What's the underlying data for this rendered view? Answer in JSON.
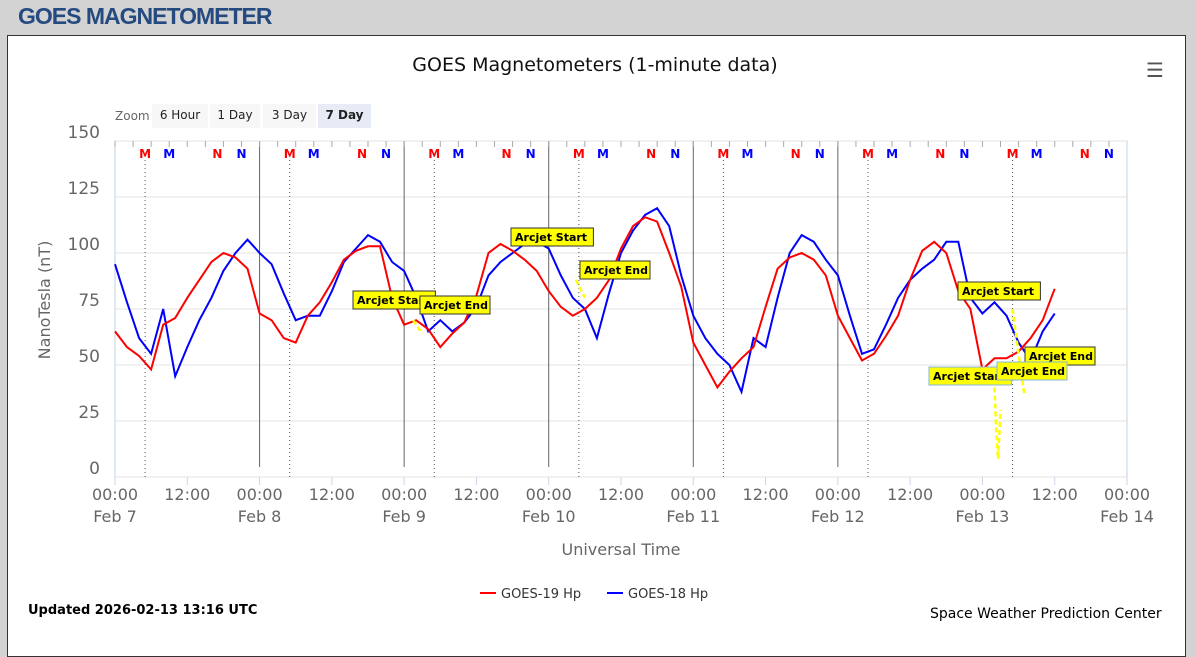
{
  "page_title": "GOES MAGNETOMETER",
  "updated": "Updated 2026-02-13 13:16 UTC",
  "credit": "Space Weather Prediction Center",
  "zoom": {
    "label": "Zoom",
    "buttons": [
      "6 Hour",
      "1 Day",
      "3 Day",
      "7 Day"
    ],
    "selected": "7 Day"
  },
  "chart_data": {
    "type": "line",
    "title": "GOES Magnetometers (1-minute data)",
    "xlabel": "Universal Time",
    "ylabel": "NanoTesla (nT)",
    "ylim": [
      0,
      150
    ],
    "yticks": [
      "0",
      "25",
      "50",
      "75",
      "100",
      "125",
      "150"
    ],
    "xlim_hours": [
      0,
      168
    ],
    "xticks": [
      {
        "t": "00:00",
        "d": "Feb 7"
      },
      {
        "t": "12:00",
        "d": ""
      },
      {
        "t": "00:00",
        "d": "Feb 8"
      },
      {
        "t": "12:00",
        "d": ""
      },
      {
        "t": "00:00",
        "d": "Feb 9"
      },
      {
        "t": "12:00",
        "d": ""
      },
      {
        "t": "00:00",
        "d": "Feb 10"
      },
      {
        "t": "12:00",
        "d": ""
      },
      {
        "t": "00:00",
        "d": "Feb 11"
      },
      {
        "t": "12:00",
        "d": ""
      },
      {
        "t": "00:00",
        "d": "Feb 12"
      },
      {
        "t": "12:00",
        "d": ""
      },
      {
        "t": "00:00",
        "d": "Feb 13"
      },
      {
        "t": "12:00",
        "d": ""
      },
      {
        "t": "00:00",
        "d": "Feb 14"
      }
    ],
    "start": "Feb 7 00:00",
    "step_hours": 2,
    "series": [
      {
        "name": "GOES-19 Hp",
        "color": "#ff0000",
        "values": [
          65,
          58,
          54,
          48,
          68,
          71,
          80,
          88,
          96,
          100,
          98,
          93,
          73,
          70,
          62,
          60,
          72,
          78,
          87,
          97,
          101,
          103,
          103,
          80,
          68,
          70,
          66,
          58,
          64,
          69,
          81,
          100,
          104,
          101,
          97,
          92,
          83,
          76,
          72,
          75,
          80,
          88,
          102,
          112,
          116,
          114,
          100,
          85,
          60,
          50,
          40,
          47,
          53,
          58,
          76,
          93,
          98,
          100,
          97,
          90,
          72,
          62,
          52,
          55,
          63,
          72,
          88,
          101,
          105,
          100,
          83,
          75,
          48,
          53,
          53,
          56,
          62,
          70,
          84
        ]
      },
      {
        "name": "GOES-18 Hp",
        "color": "#0000ff",
        "values": [
          95,
          78,
          62,
          55,
          75,
          45,
          58,
          70,
          80,
          92,
          100,
          106,
          100,
          95,
          82,
          70,
          72,
          72,
          83,
          96,
          102,
          108,
          105,
          96,
          92,
          80,
          65,
          70,
          65,
          69,
          76,
          90,
          96,
          100,
          104,
          105,
          102,
          90,
          80,
          75,
          62,
          82,
          100,
          110,
          117,
          120,
          112,
          90,
          72,
          62,
          55,
          50,
          38,
          62,
          58,
          80,
          100,
          108,
          105,
          97,
          90,
          72,
          55,
          57,
          68,
          80,
          88,
          93,
          97,
          105,
          105,
          80,
          73,
          78,
          72,
          60,
          52,
          65,
          73
        ]
      }
    ],
    "arcjet_segments": [
      {
        "h": [
          49.5,
          51
        ],
        "v": [
          70,
          64
        ]
      },
      {
        "h": [
          76.5,
          78
        ],
        "v": [
          88,
          80
        ]
      },
      {
        "h": [
          146,
          146.3,
          146.6,
          147
        ],
        "v": [
          40,
          20,
          8,
          30
        ]
      },
      {
        "h": [
          149,
          150,
          151
        ],
        "v": [
          75,
          55,
          36
        ]
      }
    ],
    "annotations": [
      {
        "text": "Arcjet Start"
      },
      {
        "text": "Arcjet End"
      },
      {
        "text": "Arcjet Start"
      },
      {
        "text": "Arcjet End"
      },
      {
        "text": "Arcjet Start"
      },
      {
        "text": "Arcjet End"
      },
      {
        "text": "Arcjet Start"
      },
      {
        "text": "Arcjet End"
      }
    ],
    "markers": [
      {
        "text": "M",
        "color": "#ff0000",
        "h": 5
      },
      {
        "text": "M",
        "color": "#0000ff",
        "h": 9
      },
      {
        "text": "N",
        "color": "#ff0000",
        "h": 17
      },
      {
        "text": "N",
        "color": "#0000ff",
        "h": 21
      }
    ],
    "legend": "bottom-center"
  }
}
